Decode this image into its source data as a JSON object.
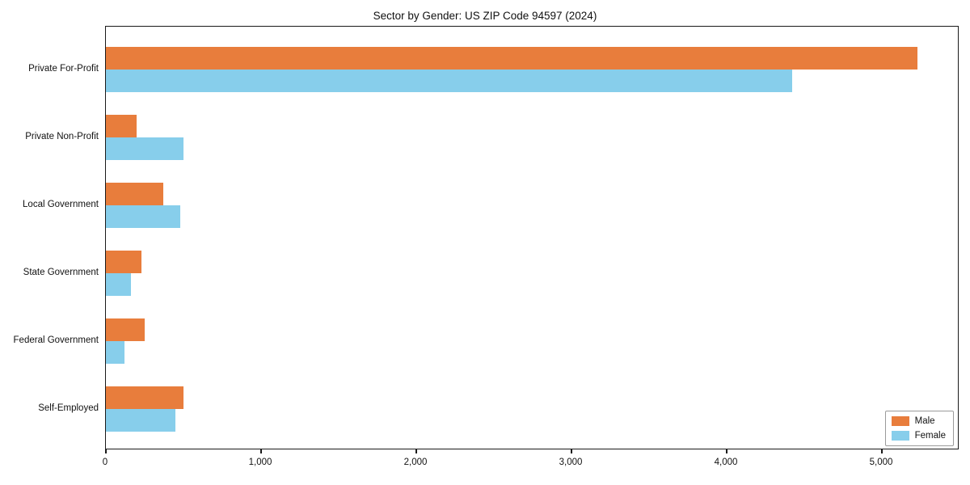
{
  "title": "Sector by Gender: US ZIP Code 94597 (2024)",
  "chart_data": {
    "type": "bar",
    "orientation": "horizontal",
    "title": "Sector by Gender: US ZIP Code 94597 (2024)",
    "categories": [
      "Private For-Profit",
      "Private Non-Profit",
      "Local Government",
      "State Government",
      "Federal Government",
      "Self-Employed"
    ],
    "series": [
      {
        "name": "Male",
        "color": "#e87d3c",
        "values": [
          5230,
          200,
          370,
          230,
          250,
          500
        ]
      },
      {
        "name": "Female",
        "color": "#87ceeb",
        "values": [
          4420,
          500,
          480,
          160,
          120,
          450
        ]
      }
    ],
    "xlim": [
      0,
      5500
    ],
    "x_ticks": [
      0,
      1000,
      2000,
      3000,
      4000,
      5000
    ],
    "x_tick_labels": [
      "0",
      "1,000",
      "2,000",
      "3,000",
      "4,000",
      "5,000"
    ],
    "xlabel": "",
    "ylabel": "",
    "grid": false,
    "legend_position": "lower right"
  }
}
